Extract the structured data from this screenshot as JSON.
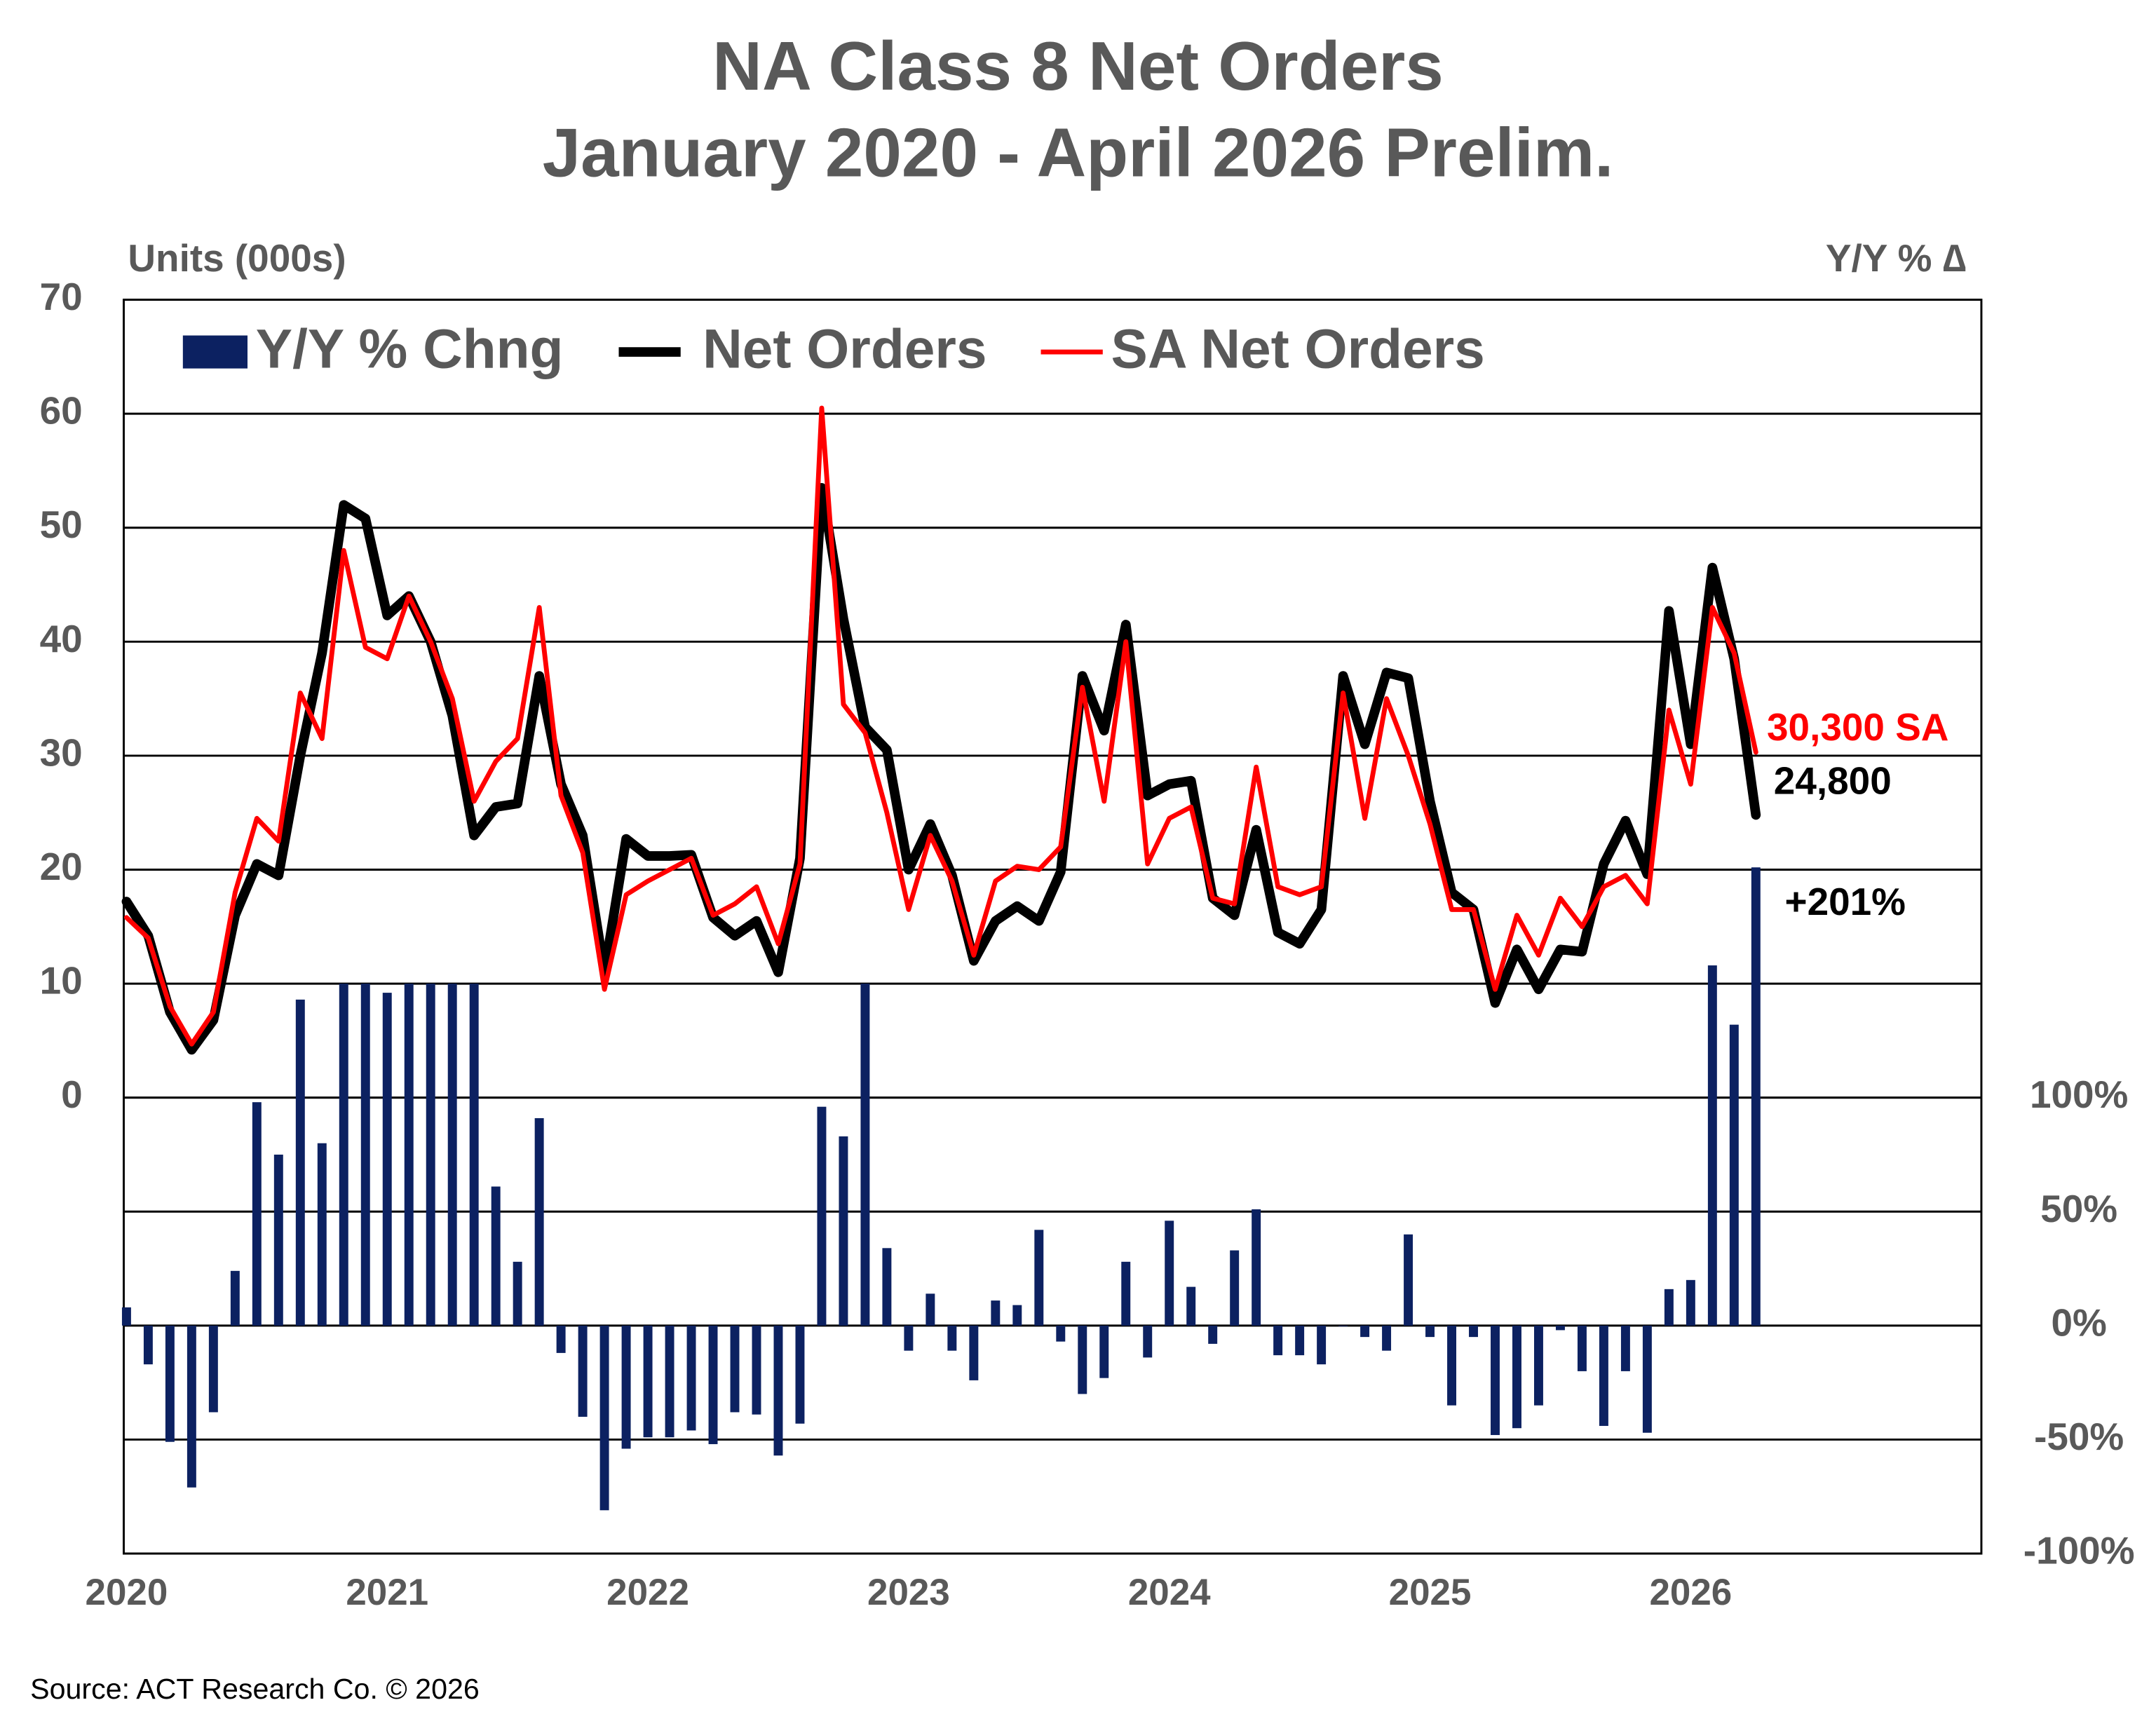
{
  "chart_data": {
    "type": "combo",
    "title": "NA Class 8 Net Orders",
    "subtitle": "January 2020 - April 2026 Prelim.",
    "y_label": "Units (000s)",
    "y2_label": "Y/Y % ∆",
    "source": "Source: ACT Research Co. © 2026",
    "categories": [
      "2020",
      null,
      null,
      null,
      null,
      null,
      null,
      null,
      null,
      null,
      null,
      null,
      "2021",
      null,
      null,
      null,
      null,
      null,
      null,
      null,
      null,
      null,
      null,
      null,
      "2022",
      null,
      null,
      null,
      null,
      null,
      null,
      null,
      null,
      null,
      null,
      null,
      "2023",
      null,
      null,
      null,
      null,
      null,
      null,
      null,
      null,
      null,
      null,
      null,
      "2024",
      null,
      null,
      null,
      null,
      null,
      null,
      null,
      null,
      null,
      null,
      null,
      "2025",
      null,
      null,
      null,
      null,
      null,
      null,
      null,
      null,
      null,
      null,
      null,
      "2026",
      null,
      null,
      null
    ],
    "ylim": [
      -40,
      70
    ],
    "yticks": [
      0,
      10,
      20,
      30,
      40,
      50,
      60,
      70
    ],
    "y2lim": [
      -100,
      450
    ],
    "y2ticks": [
      {
        "value": -100,
        "label": "-100%"
      },
      {
        "value": -50,
        "label": "-50%"
      },
      {
        "value": 0,
        "label": "0%"
      },
      {
        "value": 50,
        "label": "50%"
      },
      {
        "value": 100,
        "label": "100%"
      }
    ],
    "grid": true,
    "legend": "top-left",
    "series": [
      {
        "name": "Y/Y % Chng",
        "type": "bar",
        "axis": "y2",
        "color": "#0c2161",
        "values": [
          8,
          -17,
          -51,
          -71,
          -38,
          24,
          98,
          75,
          143,
          80,
          150,
          150,
          146,
          150,
          150,
          150,
          150,
          61,
          28,
          91,
          -12,
          -40,
          -81,
          -54,
          -49,
          -49,
          -46,
          -52,
          -38,
          -39,
          -57,
          -43,
          96,
          83,
          150,
          34,
          -11,
          14,
          -11,
          -24,
          11,
          9,
          42,
          -7,
          -30,
          -23,
          28,
          -14,
          46,
          17,
          -8,
          33,
          51,
          -13,
          -13,
          -17,
          0,
          -5,
          -11,
          40,
          -5,
          -35,
          -5,
          -48,
          -45,
          -35,
          -2,
          -20,
          -44,
          -20,
          -47,
          16,
          20,
          158,
          132,
          201
        ]
      },
      {
        "name": "Net Orders",
        "type": "line",
        "color": "#000000",
        "width": 7,
        "values": [
          17.2,
          14.2,
          7.5,
          4.2,
          6.8,
          16,
          20.5,
          19.5,
          30,
          39,
          52,
          50.8,
          42.3,
          44,
          40,
          33.5,
          23,
          25.5,
          25.8,
          37,
          27.5,
          23,
          11,
          22.7,
          21.2,
          21.2,
          21.3,
          15.8,
          14.2,
          15.5,
          11,
          21,
          53.5,
          42,
          32.5,
          30.5,
          20,
          24,
          19.5,
          12,
          15.5,
          16.8,
          15.5,
          19.8,
          37,
          32.2,
          41.5,
          26.5,
          27.5,
          27.8,
          17.5,
          16,
          23.5,
          14.5,
          13.5,
          16.5,
          37,
          31,
          37.3,
          36.8,
          26,
          18,
          16.5,
          8.3,
          13,
          9.5,
          13,
          12.8,
          20.5,
          24.3,
          19.6,
          42.7,
          31,
          46.5,
          38.5,
          24.8
        ]
      },
      {
        "name": "SA Net Orders",
        "type": "line",
        "color": "#ff0000",
        "width": 3.5,
        "values": [
          15.8,
          14,
          8,
          4.7,
          7.5,
          18,
          24.5,
          22.5,
          35.5,
          31.5,
          48,
          39.5,
          38.5,
          44,
          40,
          35,
          26,
          29.5,
          31.5,
          43,
          26.5,
          21.5,
          9.5,
          17.8,
          19,
          20,
          21,
          16,
          17,
          18.5,
          13.5,
          20.5,
          60.5,
          34.5,
          32,
          25,
          16.5,
          23,
          19,
          12.5,
          19,
          20.3,
          20,
          22,
          36,
          26,
          40,
          20.5,
          24.5,
          25.5,
          17.5,
          17,
          29,
          18.5,
          17.8,
          18.5,
          35.5,
          24.5,
          35,
          30,
          24,
          16.5,
          16.5,
          9.5,
          16,
          12.5,
          17.5,
          15,
          18.5,
          19.5,
          17,
          34,
          27.5,
          43,
          39,
          30.3
        ]
      }
    ],
    "annotations": [
      {
        "text": "30,300 SA",
        "color": "#ff0000"
      },
      {
        "text": "24,800",
        "color": "#000000"
      },
      {
        "text": "+201%",
        "color": "#000000"
      }
    ]
  }
}
